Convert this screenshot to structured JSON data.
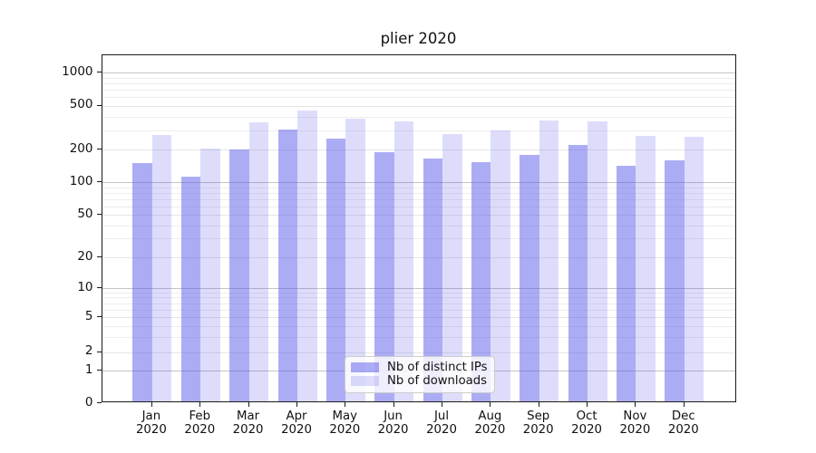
{
  "chart_data": {
    "type": "bar",
    "title": "plier 2020",
    "categories": [
      {
        "month": "Jan",
        "year": "2020"
      },
      {
        "month": "Feb",
        "year": "2020"
      },
      {
        "month": "Mar",
        "year": "2020"
      },
      {
        "month": "Apr",
        "year": "2020"
      },
      {
        "month": "May",
        "year": "2020"
      },
      {
        "month": "Jun",
        "year": "2020"
      },
      {
        "month": "Jul",
        "year": "2020"
      },
      {
        "month": "Aug",
        "year": "2020"
      },
      {
        "month": "Sep",
        "year": "2020"
      },
      {
        "month": "Oct",
        "year": "2020"
      },
      {
        "month": "Nov",
        "year": "2020"
      },
      {
        "month": "Dec",
        "year": "2020"
      }
    ],
    "series": [
      {
        "name": "Nb of distinct IPs",
        "color": "#aaaaf2",
        "color_rgba": "rgba(85,85,235,0.49)",
        "values": [
          151,
          112,
          200,
          305,
          253,
          190,
          165,
          153,
          180,
          220,
          141,
          158
        ]
      },
      {
        "name": "Nb of downloads",
        "color": "#dcdcfa",
        "color_rgba": "rgba(85,85,235,0.20)",
        "values": [
          270,
          205,
          352,
          455,
          383,
          363,
          278,
          300,
          370,
          363,
          268,
          260
        ]
      }
    ],
    "y_axis": {
      "scale": "symlog",
      "ticks": [
        0,
        1,
        2,
        5,
        10,
        20,
        50,
        100,
        200,
        500,
        1000
      ],
      "major_ticks": [
        1,
        10,
        100,
        1000
      ],
      "range": [
        0,
        1450
      ]
    },
    "x_axis": {
      "label": ""
    },
    "legend": {
      "position": "lower center"
    },
    "grid": {
      "on": true,
      "major_color": "#c4c4c4",
      "minor_color": "#ededed"
    }
  }
}
